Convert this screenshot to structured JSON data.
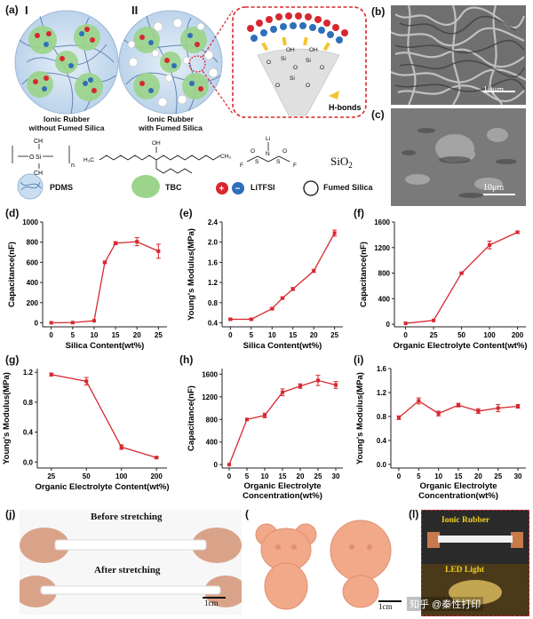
{
  "panel_letters": {
    "a": "(a)",
    "b": "(b)",
    "c": "(c)",
    "d": "(d)",
    "e": "(e)",
    "f": "(f)",
    "g": "(g)",
    "h": "(h)",
    "i": "(i)",
    "j": "(j)",
    "k": "(k)",
    "l": "(l)"
  },
  "schematic": {
    "roman_1": "I",
    "roman_2": "II",
    "caption_1_line1": "Ionic Rubber",
    "caption_1_line2": "without Fumed Silica",
    "caption_2_line1": "Ionic Rubber",
    "caption_2_line2": "with Fumed Silica",
    "hbonds_label": "H-bonds",
    "oh_label": "OH",
    "si_label": "Si",
    "o_label": "O",
    "sio2_label": "SiO",
    "sio2_sub": "2",
    "pdms_n": "n",
    "pdms_si": "Si",
    "pdms_o": "O",
    "pdms_ch3": "CH",
    "tbc_oh": "OH",
    "tbc_h3c": "H₃C",
    "tbc_ch3": "CH₃",
    "lit_li": "Li",
    "lit_n": "N",
    "lit_s": "S",
    "lit_f": "F",
    "lit_o": "O",
    "legend_pdms": "PDMS",
    "legend_tbc": "TBC",
    "legend_litfsi": "LiTFSI",
    "legend_fumed": "Fumed Silica",
    "plus": "+",
    "minus": "−"
  },
  "sem": {
    "b_scale": "10μm",
    "c_scale": "10μm"
  },
  "photos": {
    "j_top": "Before stretching",
    "j_bottom": "After stretching",
    "j_scale": "1cm",
    "k_scale": "1cm",
    "l_top": "Ionic Rubber",
    "l_bottom": "LED Light",
    "watermark": "知乎 @秦性打印"
  },
  "colors": {
    "line": "#d7282f",
    "axis": "#222222",
    "ionic_blue": "#2f6fba",
    "tbc_green": "#9bd48a",
    "rubber_bg": "#c9def0"
  },
  "chart_data": [
    {
      "id": "d",
      "type": "line",
      "x": [
        0,
        5,
        10,
        12.5,
        15,
        20,
        25
      ],
      "x_ticks": [
        "0",
        "5",
        "10",
        "15",
        "20",
        "25"
      ],
      "x_tick_values": [
        0,
        5,
        10,
        15,
        20,
        25
      ],
      "xlim": [
        -2,
        27
      ],
      "y": [
        0,
        2,
        20,
        600,
        790,
        805,
        710
      ],
      "yerr": [
        0,
        0,
        0,
        10,
        15,
        40,
        70
      ],
      "ylim": [
        -40,
        1000
      ],
      "y_ticks": [
        "0",
        "200",
        "400",
        "600",
        "800",
        "1000"
      ],
      "y_tick_values": [
        0,
        200,
        400,
        600,
        800,
        1000
      ],
      "xlabel": "Silica Content(wt%)",
      "ylabel": "Capacitance(nF)"
    },
    {
      "id": "e",
      "type": "line",
      "x": [
        0,
        5,
        10,
        12.5,
        15,
        20,
        25
      ],
      "x_ticks": [
        "0",
        "5",
        "10",
        "15",
        "20",
        "25"
      ],
      "x_tick_values": [
        0,
        5,
        10,
        15,
        20,
        25
      ],
      "xlim": [
        -2,
        27
      ],
      "y": [
        0.47,
        0.47,
        0.68,
        0.89,
        1.07,
        1.43,
        2.18
      ],
      "yerr": [
        0.01,
        0.01,
        0.02,
        0.02,
        0.03,
        0.03,
        0.06
      ],
      "ylim": [
        0.32,
        2.4
      ],
      "y_ticks": [
        "0.4",
        "0.8",
        "1.2",
        "1.6",
        "2.0",
        "2.4"
      ],
      "y_tick_values": [
        0.4,
        0.8,
        1.2,
        1.6,
        2.0,
        2.4
      ],
      "xlabel": "Silica Content(wt%)",
      "ylabel": "Young's Modulus(MPa)"
    },
    {
      "id": "f",
      "type": "line",
      "x": [
        0,
        1,
        2,
        3,
        4
      ],
      "x_ticks": [
        "0",
        "25",
        "50",
        "100",
        "200"
      ],
      "x_tick_values": [
        0,
        1,
        2,
        3,
        4
      ],
      "xlim": [
        -0.4,
        4.3
      ],
      "y": [
        15,
        60,
        800,
        1240,
        1440
      ],
      "yerr": [
        0,
        0,
        10,
        60,
        20
      ],
      "ylim": [
        -40,
        1600
      ],
      "y_ticks": [
        "0",
        "400",
        "800",
        "1200",
        "1600"
      ],
      "y_tick_values": [
        0,
        400,
        800,
        1200,
        1600
      ],
      "xlabel": "Organic Electrolyte Content(wt%)",
      "ylabel": "Capacitance(nF)"
    },
    {
      "id": "g",
      "type": "line",
      "x": [
        0,
        1,
        2,
        3
      ],
      "x_ticks": [
        "25",
        "50",
        "100",
        "200"
      ],
      "x_tick_values": [
        0,
        1,
        2,
        3
      ],
      "xlim": [
        -0.4,
        3.3
      ],
      "y": [
        1.17,
        1.08,
        0.2,
        0.06
      ],
      "yerr": [
        0.02,
        0.05,
        0.03,
        0.01
      ],
      "ylim": [
        -0.08,
        1.25
      ],
      "y_ticks": [
        "0.0",
        "0.4",
        "0.8",
        "1.2"
      ],
      "y_tick_values": [
        0,
        0.4,
        0.8,
        1.2
      ],
      "xlabel": "Organic Electrolyte Content(wt%)",
      "ylabel": "Young's Modulus(MPa)"
    },
    {
      "id": "h",
      "type": "line",
      "x": [
        0,
        5,
        10,
        15,
        20,
        25,
        30
      ],
      "x_ticks": [
        "0",
        "5",
        "10",
        "15",
        "20",
        "25",
        "30"
      ],
      "x_tick_values": [
        0,
        5,
        10,
        15,
        20,
        25,
        30
      ],
      "xlim": [
        -2,
        32
      ],
      "y": [
        0,
        800,
        870,
        1280,
        1390,
        1490,
        1410
      ],
      "yerr": [
        0,
        0,
        40,
        60,
        40,
        90,
        60
      ],
      "ylim": [
        -60,
        1700
      ],
      "y_ticks": [
        "0",
        "400",
        "800",
        "1200",
        "1600"
      ],
      "y_tick_values": [
        0,
        400,
        800,
        1200,
        1600
      ],
      "xlabel": "Organic Electrolyte Concentration(wt%)",
      "ylabel": "Capacitance(nF)"
    },
    {
      "id": "i",
      "type": "line",
      "x": [
        0,
        5,
        10,
        15,
        20,
        25,
        30
      ],
      "x_ticks": [
        "0",
        "5",
        "10",
        "15",
        "20",
        "25",
        "30"
      ],
      "x_tick_values": [
        0,
        5,
        10,
        15,
        20,
        25,
        30
      ],
      "xlim": [
        -2,
        32
      ],
      "y": [
        0.78,
        1.06,
        0.85,
        0.99,
        0.89,
        0.94,
        0.97
      ],
      "yerr": [
        0.03,
        0.05,
        0.04,
        0.03,
        0.04,
        0.06,
        0.03
      ],
      "ylim": [
        -0.06,
        1.6
      ],
      "y_ticks": [
        "0.0",
        "0.4",
        "0.8",
        "1.2",
        "1.6"
      ],
      "y_tick_values": [
        0,
        0.4,
        0.8,
        1.2,
        1.6
      ],
      "xlabel": "Organic Electrolyte Concentration(wt%)",
      "ylabel": "Young's Modulus(MPa)"
    }
  ]
}
